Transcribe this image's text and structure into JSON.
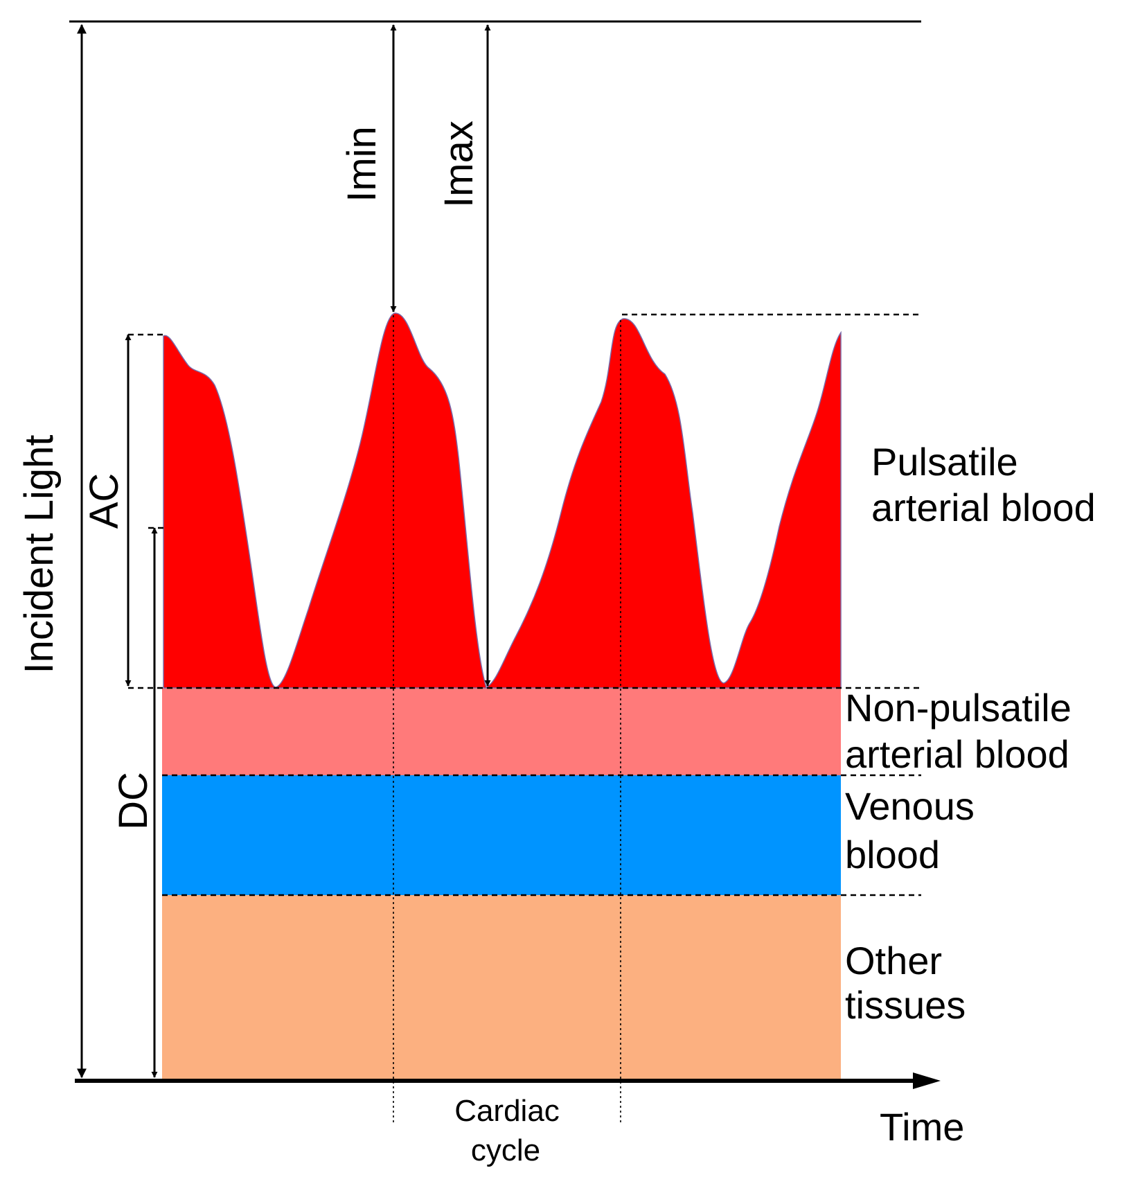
{
  "axes": {
    "y_label": "Incident Light",
    "x_label": "Time"
  },
  "measures": {
    "imin": "Imin",
    "imax": "Imax",
    "ac": "AC",
    "dc": "DC"
  },
  "cycle_label": {
    "line1": "Cardiac",
    "line2": "cycle"
  },
  "layers": [
    {
      "name": "pulsatile",
      "line1": "Pulsatile",
      "line2": "arterial blood",
      "color": "#ff0000"
    },
    {
      "name": "non-pulsatile",
      "line1": "Non-pulsatile",
      "line2": "arterial blood",
      "color": "#ff7a7a"
    },
    {
      "name": "venous",
      "line1": "Venous",
      "line2": "blood",
      "color": "#0094ff"
    },
    {
      "name": "other",
      "line1": "Other",
      "line2": "tissues",
      "color": "#fcb080"
    }
  ],
  "colors": {
    "stroke": "#000000",
    "waveform_edge": "#7a6aa8"
  }
}
